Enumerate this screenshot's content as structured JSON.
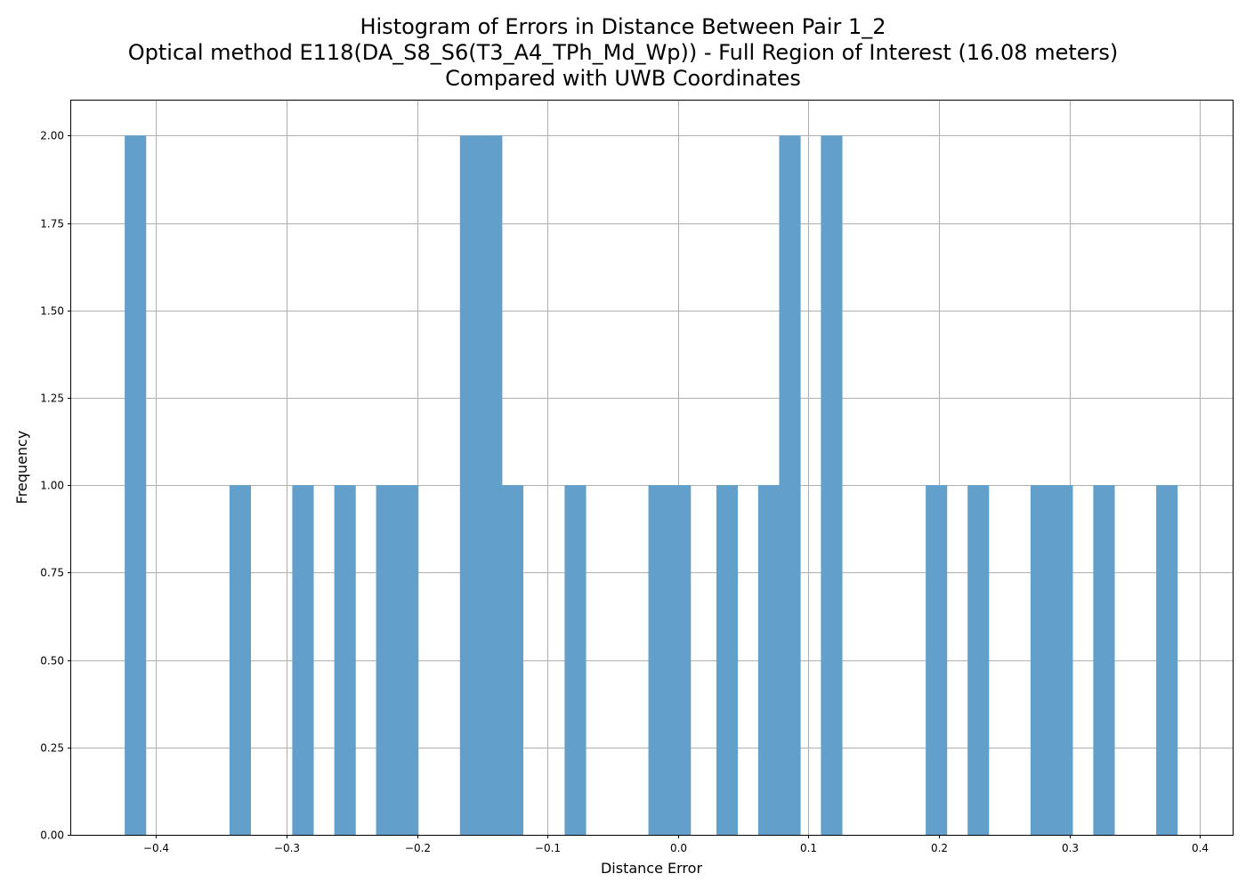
{
  "chart_data": {
    "type": "bar",
    "title_lines": [
      "Histogram of Errors in Distance Between Pair 1_2",
      "Optical method E118(DA_S8_S6(T3_A4_TPh_Md_Wp)) - Full Region of Interest (16.08 meters)",
      "Compared with UWB Coordinates"
    ],
    "xlabel": "Distance Error",
    "ylabel": "Frequency",
    "xlim": [
      -0.465,
      0.425
    ],
    "ylim": [
      0,
      2.1
    ],
    "grid": true,
    "bar_color": "#62a0cb",
    "bin_width": 0.01605,
    "bins": [
      {
        "x0": -0.424,
        "count": 2
      },
      {
        "x0": -0.3437,
        "count": 1
      },
      {
        "x0": -0.2956,
        "count": 1
      },
      {
        "x0": -0.2634,
        "count": 1
      },
      {
        "x0": -0.2314,
        "count": 1
      },
      {
        "x0": -0.2153,
        "count": 1
      },
      {
        "x0": -0.1671,
        "count": 2
      },
      {
        "x0": -0.1511,
        "count": 2
      },
      {
        "x0": -0.135,
        "count": 1
      },
      {
        "x0": -0.0869,
        "count": 1
      },
      {
        "x0": -0.0227,
        "count": 1
      },
      {
        "x0": -0.0066,
        "count": 1
      },
      {
        "x0": 0.0294,
        "count": 1
      },
      {
        "x0": 0.0614,
        "count": 1
      },
      {
        "x0": 0.0775,
        "count": 2
      },
      {
        "x0": 0.1095,
        "count": 2
      },
      {
        "x0": 0.1898,
        "count": 1
      },
      {
        "x0": 0.2219,
        "count": 1
      },
      {
        "x0": 0.2701,
        "count": 1
      },
      {
        "x0": 0.2861,
        "count": 1
      },
      {
        "x0": 0.3182,
        "count": 1
      },
      {
        "x0": 0.3664,
        "count": 1
      }
    ],
    "x_ticks": [
      {
        "value": -0.4,
        "label": "−0.4"
      },
      {
        "value": -0.3,
        "label": "−0.3"
      },
      {
        "value": -0.2,
        "label": "−0.2"
      },
      {
        "value": -0.1,
        "label": "−0.1"
      },
      {
        "value": 0.0,
        "label": "0.0"
      },
      {
        "value": 0.1,
        "label": "0.1"
      },
      {
        "value": 0.2,
        "label": "0.2"
      },
      {
        "value": 0.3,
        "label": "0.3"
      },
      {
        "value": 0.4,
        "label": "0.4"
      }
    ],
    "y_ticks": [
      {
        "value": 0.0,
        "label": "0.00"
      },
      {
        "value": 0.25,
        "label": "0.25"
      },
      {
        "value": 0.5,
        "label": "0.50"
      },
      {
        "value": 0.75,
        "label": "0.75"
      },
      {
        "value": 1.0,
        "label": "1.00"
      },
      {
        "value": 1.25,
        "label": "1.25"
      },
      {
        "value": 1.5,
        "label": "1.50"
      },
      {
        "value": 1.75,
        "label": "1.75"
      },
      {
        "value": 2.0,
        "label": "2.00"
      }
    ]
  }
}
